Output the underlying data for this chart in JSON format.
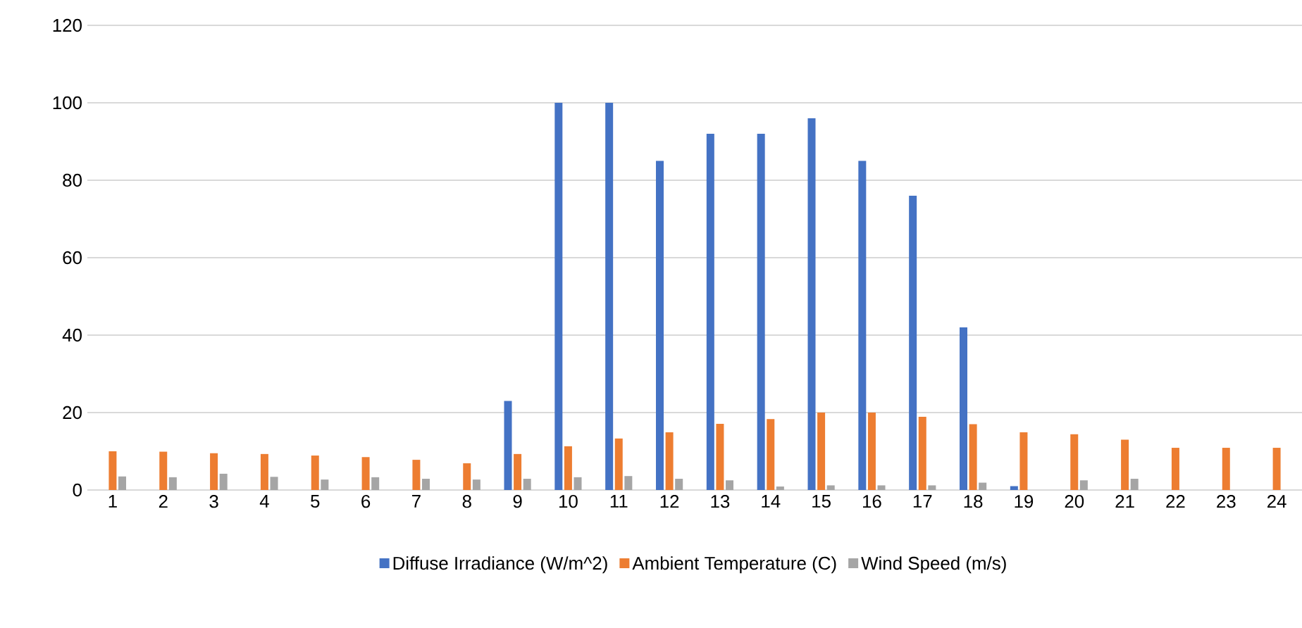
{
  "chart_data": {
    "type": "bar",
    "categories": [
      "1",
      "2",
      "3",
      "4",
      "5",
      "6",
      "7",
      "8",
      "9",
      "10",
      "11",
      "12",
      "13",
      "14",
      "15",
      "16",
      "17",
      "18",
      "19",
      "20",
      "21",
      "22",
      "23",
      "24"
    ],
    "series": [
      {
        "name": "Diffuse Irradiance (W/m^2)",
        "color": "#4472c4",
        "values": [
          0,
          0,
          0,
          0,
          0,
          0,
          0,
          0,
          23,
          100,
          100,
          85,
          92,
          92,
          96,
          85,
          76,
          42,
          1,
          0,
          0,
          0,
          0,
          0
        ]
      },
      {
        "name": "Ambient Temperature (C)",
        "color": "#ed7d31",
        "values": [
          10,
          9.9,
          9.5,
          9.3,
          8.9,
          8.5,
          7.8,
          6.9,
          9.3,
          11.3,
          13.3,
          14.9,
          17.1,
          18.3,
          20,
          20,
          18.9,
          17,
          14.9,
          14.4,
          13,
          10.9,
          10.9,
          10.9
        ]
      },
      {
        "name": "Wind Speed (m/s)",
        "color": "#a5a5a5",
        "values": [
          3.5,
          3.3,
          4.2,
          3.4,
          2.7,
          3.3,
          2.9,
          2.7,
          2.9,
          3.3,
          3.6,
          2.9,
          2.5,
          0.9,
          1.2,
          1.2,
          1.2,
          1.9,
          0,
          2.5,
          2.9,
          0,
          0,
          0
        ]
      }
    ],
    "ylim": [
      0,
      120
    ],
    "yticks": [
      0,
      20,
      40,
      60,
      80,
      100,
      120
    ],
    "grid": "y",
    "legend": "bottom"
  }
}
